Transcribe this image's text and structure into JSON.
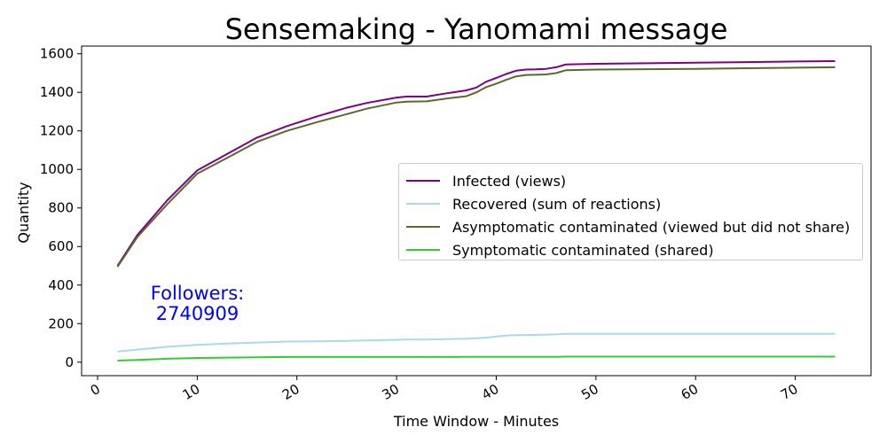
{
  "chart_data": {
    "type": "line",
    "title": "Sensemaking - Yanomami message",
    "xlabel": "Time Window - Minutes",
    "ylabel": "Quantity",
    "xlim": [
      -1.6,
      77.6
    ],
    "ylim": [
      -70,
      1640
    ],
    "xticks": [
      0,
      10,
      20,
      30,
      40,
      50,
      60,
      70
    ],
    "yticks": [
      0,
      200,
      400,
      600,
      800,
      1000,
      1200,
      1400,
      1600
    ],
    "xtick_labels": [
      "0",
      "10",
      "20",
      "30",
      "40",
      "50",
      "60",
      "70"
    ],
    "ytick_labels": [
      "0",
      "200",
      "400",
      "600",
      "800",
      "1000",
      "1200",
      "1400",
      "1600"
    ],
    "legend_position": "center-right",
    "grid": false,
    "x": [
      2,
      4,
      7,
      10,
      13,
      16,
      19,
      22,
      25,
      27,
      30,
      31,
      33,
      35,
      37,
      38,
      39,
      40,
      41,
      42,
      43,
      44,
      45,
      46,
      47,
      50,
      55,
      60,
      65,
      70,
      74
    ],
    "series": [
      {
        "name": "Infected (views)",
        "color": "#800080",
        "values": [
          500,
          660,
          840,
          995,
          1080,
          1165,
          1225,
          1275,
          1320,
          1345,
          1373,
          1378,
          1378,
          1395,
          1410,
          1425,
          1455,
          1475,
          1495,
          1512,
          1518,
          1519,
          1522,
          1530,
          1545,
          1548,
          1551,
          1554,
          1557,
          1560,
          1562
        ]
      },
      {
        "name": "Recovered (sum of reactions)",
        "color": "#add8e6",
        "values": [
          55,
          65,
          80,
          90,
          97,
          102,
          107,
          108,
          110,
          113,
          116,
          117,
          117,
          120,
          122,
          124,
          127,
          133,
          138,
          140,
          141,
          142,
          143,
          144,
          147,
          147,
          147,
          147,
          147,
          147,
          147
        ]
      },
      {
        "name": "Asymptomatic contaminated (viewed but did not share)",
        "color": "#556b2f",
        "values": [
          495,
          650,
          820,
          978,
          1060,
          1143,
          1200,
          1245,
          1287,
          1315,
          1347,
          1352,
          1353,
          1368,
          1380,
          1400,
          1427,
          1445,
          1465,
          1483,
          1490,
          1491,
          1493,
          1500,
          1515,
          1518,
          1520,
          1522,
          1525,
          1528,
          1530
        ]
      },
      {
        "name": "Symptomatic contaminated (shared)",
        "color": "#32cd32",
        "values": [
          8,
          12,
          18,
          22,
          24,
          25,
          27,
          27,
          27,
          27,
          27,
          27,
          27,
          27,
          28,
          28,
          28,
          28,
          28,
          28,
          28,
          28,
          28,
          28,
          29,
          29,
          29,
          29,
          29,
          29,
          29
        ]
      }
    ],
    "annotation": {
      "line1": "Followers:",
      "line2": "2740909",
      "color": "#0000ff"
    }
  }
}
